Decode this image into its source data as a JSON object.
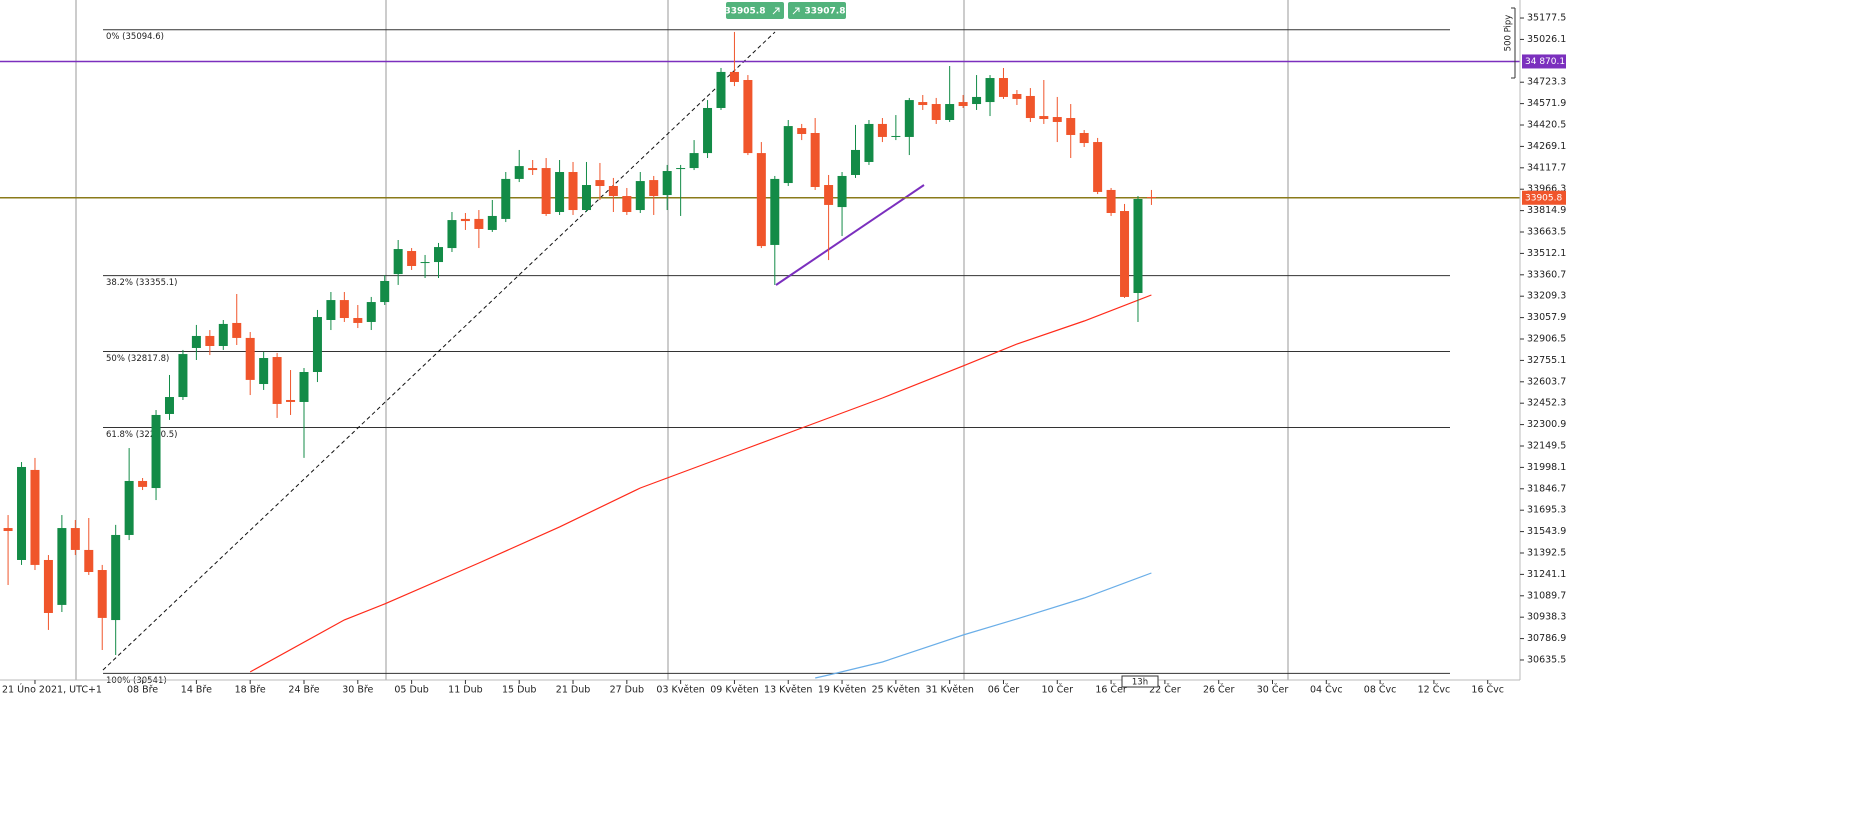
{
  "chart_data": {
    "type": "candlestick",
    "up_color": "#138b47",
    "down_color": "#f0552b",
    "open": [
      31569,
      31343,
      31980,
      31343,
      31025,
      31569,
      31414,
      31272,
      30918,
      31520,
      31902,
      31852,
      32376,
      32496,
      32843,
      32928,
      32857,
      33020,
      32914,
      32588,
      32779,
      32475,
      32461,
      32673,
      33041,
      33182,
      33055,
      33027,
      33168,
      33366,
      33529,
      33444,
      33451,
      33550,
      33756,
      33756,
      33678,
      33756,
      34039,
      34116,
      34116,
      33805,
      34088,
      33819,
      34031,
      33989,
      33918,
      33819,
      34031,
      33925,
      34109,
      34116,
      34222,
      34541,
      34796,
      34739,
      34222,
      33572,
      34010,
      34399,
      34364,
      33996,
      33840,
      34067,
      34159,
      34428,
      34336,
      34336,
      34583,
      34569,
      34456,
      34583,
      34569,
      34583,
      34753,
      34640,
      34626,
      34484,
      34477,
      34470,
      34364,
      34300,
      33961,
      33812,
      33232,
      33911
    ],
    "close": [
      31548,
      32001,
      31308,
      30968,
      31569,
      31414,
      31258,
      30933,
      31520,
      31902,
      31860,
      32369,
      32496,
      32800,
      32928,
      32857,
      33013,
      32914,
      32617,
      32772,
      32447,
      32461,
      32673,
      33062,
      33182,
      33055,
      33020,
      33168,
      33317,
      33543,
      33423,
      33451,
      33557,
      33748,
      33741,
      33685,
      33777,
      34039,
      34130,
      34102,
      33791,
      34088,
      33819,
      33996,
      33989,
      33918,
      33805,
      34024,
      33918,
      34095,
      34116,
      34222,
      34541,
      34796,
      34725,
      34222,
      33564,
      34039,
      34413,
      34357,
      33982,
      33855,
      34060,
      34244,
      34428,
      34336,
      34343,
      34597,
      34562,
      34456,
      34569,
      34555,
      34619,
      34753,
      34619,
      34605,
      34470,
      34463,
      34442,
      34350,
      34293,
      33947,
      33798,
      33204,
      33897,
      33905.8
    ],
    "high": [
      31661,
      32036,
      32065,
      31378,
      31661,
      31626,
      31640,
      31308,
      31591,
      32135,
      31923,
      32404,
      32652,
      32829,
      33006,
      32970,
      33041,
      33225,
      32956,
      32815,
      32808,
      32687,
      32701,
      33112,
      33239,
      33239,
      33147,
      33204,
      33359,
      33607,
      33550,
      33501,
      33586,
      33805,
      33798,
      33819,
      33890,
      34088,
      34244,
      34173,
      34187,
      34173,
      34159,
      34159,
      34152,
      34046,
      33975,
      34088,
      34060,
      34138,
      34138,
      34314,
      34597,
      34824,
      35079,
      34774,
      34300,
      34060,
      34456,
      34428,
      34470,
      34067,
      34088,
      34421,
      34456,
      34470,
      34491,
      34612,
      34633,
      34612,
      34838,
      34633,
      34774,
      34774,
      34824,
      34668,
      34682,
      34739,
      34619,
      34569,
      34385,
      34329,
      33975,
      33862,
      33918,
      33961
    ],
    "low": [
      31166,
      31308,
      31272,
      30848,
      30975,
      31378,
      31237,
      30706,
      30671,
      31484,
      31838,
      31767,
      32334,
      32475,
      32758,
      32793,
      32829,
      32864,
      32510,
      32546,
      32348,
      32369,
      32065,
      32602,
      32970,
      33027,
      32984,
      32970,
      33147,
      33289,
      33395,
      33338,
      33338,
      33522,
      33678,
      33550,
      33664,
      33734,
      34017,
      34067,
      33777,
      33784,
      33784,
      33805,
      33890,
      33805,
      33784,
      33798,
      33784,
      33819,
      33777,
      34102,
      34187,
      34527,
      34696,
      34208,
      33550,
      33289,
      33989,
      34314,
      33961,
      33465,
      33635,
      34046,
      34138,
      34300,
      34314,
      34208,
      34527,
      34428,
      34442,
      34541,
      34527,
      34484,
      34605,
      34562,
      34442,
      34428,
      34300,
      34187,
      34265,
      33932,
      33777,
      33197,
      33027,
      33855
    ],
    "lines": [
      {
        "color": "#ff2a1a",
        "x": [
          18,
          25,
          28,
          35,
          41,
          47,
          54,
          59,
          65,
          71,
          75,
          80,
          85
        ],
        "values": [
          30551,
          30919,
          31032,
          31322,
          31577,
          31852,
          32100,
          32277,
          32489,
          32716,
          32871,
          33034,
          33218
        ]
      },
      {
        "color": "#6aaee8",
        "x": [
          60,
          61,
          65,
          71,
          75,
          80,
          85
        ],
        "values": [
          30508,
          30529,
          30621,
          30812,
          30926,
          31074,
          31251
        ]
      }
    ],
    "fib_levels": [
      {
        "value": 35094.6,
        "label": "0% (35094.6)"
      },
      {
        "value": 33355.1,
        "label": "38.2% (33355.1)"
      },
      {
        "value": 32817.8,
        "label": "50% (32817.8)"
      },
      {
        "value": 32280.5,
        "label": "61.8% (32280.5)"
      },
      {
        "value": 30541,
        "label": "100% (30541)"
      }
    ],
    "price_lines": [
      {
        "value": 34870.1,
        "label": "34 870.1",
        "color": "#7b2fbe",
        "label_color": "#7b2fbe"
      },
      {
        "value": 33905.8,
        "label": "33905.8",
        "color": "#8a7a1a",
        "label_color": "#f0552b"
      }
    ],
    "bid": 33905.8,
    "ask": 33907.8,
    "ruler_label": "500 Pipy",
    "time_label": "13h",
    "xlim": [
      -0.6,
      112.4
    ],
    "ylim": [
      30508,
      35305
    ],
    "yticks": [
      35177.5,
      35026.1,
      34723.3,
      34571.9,
      34420.5,
      34269.1,
      34117.7,
      33966.3,
      33814.9,
      33663.5,
      33512.1,
      33360.7,
      33209.3,
      33057.9,
      32906.5,
      32755.1,
      32603.7,
      32452.3,
      32300.9,
      32149.5,
      31998.1,
      31846.7,
      31695.3,
      31543.9,
      31392.5,
      31241.1,
      31089.7,
      30938.3,
      30786.9,
      30635.5
    ],
    "xticks": [
      {
        "value": 2,
        "label": "21 Úno 2021, UTC+1"
      },
      {
        "value": 10,
        "label": "08 Bře"
      },
      {
        "value": 14,
        "label": "14 Bře"
      },
      {
        "value": 18,
        "label": "18 Bře"
      },
      {
        "value": 22,
        "label": "24 Bře"
      },
      {
        "value": 26,
        "label": "30 Bře"
      },
      {
        "value": 30,
        "label": "05 Dub"
      },
      {
        "value": 34,
        "label": "11 Dub"
      },
      {
        "value": 38,
        "label": "15 Dub"
      },
      {
        "value": 42,
        "label": "21 Dub"
      },
      {
        "value": 46,
        "label": "27 Dub"
      },
      {
        "value": 50,
        "label": "03 Květen"
      },
      {
        "value": 54,
        "label": "09 Květen"
      },
      {
        "value": 58,
        "label": "13 Květen"
      },
      {
        "value": 62,
        "label": "19 Květen"
      },
      {
        "value": 66,
        "label": "25 Květen"
      },
      {
        "value": 70,
        "label": "31 Květen"
      },
      {
        "value": 74,
        "label": "06 Čer"
      },
      {
        "value": 78,
        "label": "10 Čer"
      },
      {
        "value": 82,
        "label": "16 Čer"
      },
      {
        "value": 86,
        "label": "22 Čer"
      },
      {
        "value": 90,
        "label": "26 Čer"
      },
      {
        "value": 94,
        "label": "30 Čer"
      },
      {
        "value": 98,
        "label": "04 Čvc"
      },
      {
        "value": 102,
        "label": "08 Čvc"
      },
      {
        "value": 106,
        "label": "12 Čvc"
      },
      {
        "value": 110,
        "label": "16 Čvc"
      }
    ]
  }
}
